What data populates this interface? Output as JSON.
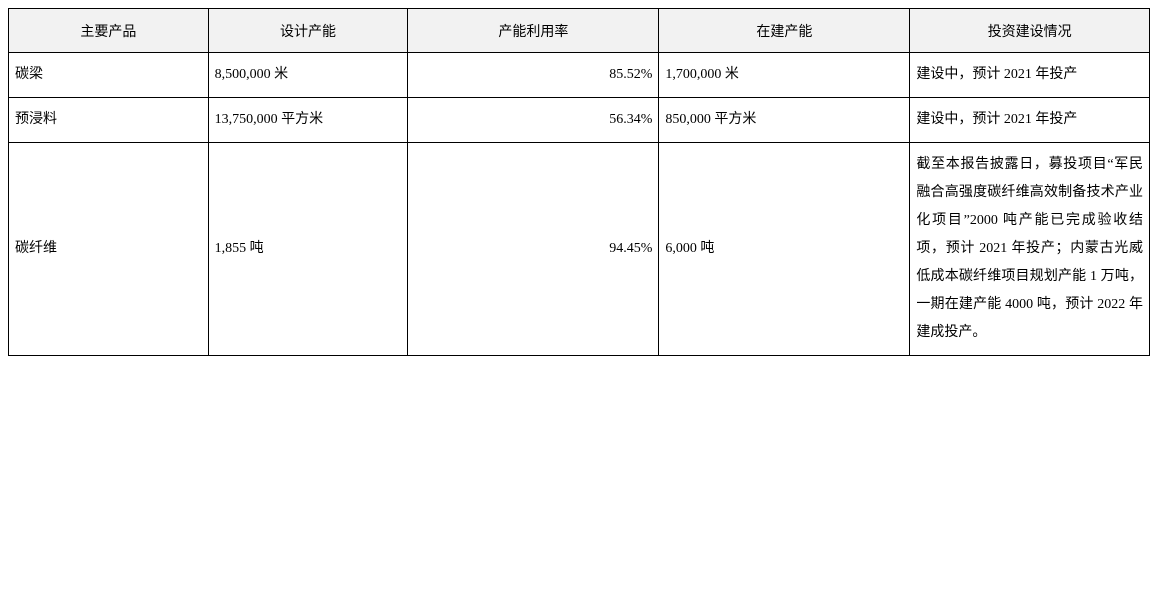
{
  "table": {
    "headers": {
      "product": "主要产品",
      "design_capacity": "设计产能",
      "utilization_rate": "产能利用率",
      "under_construction": "在建产能",
      "investment_status": "投资建设情况"
    },
    "rows": [
      {
        "product": "碳梁",
        "design_capacity": "8,500,000 米",
        "utilization_rate": "85.52%",
        "under_construction": "1,700,000 米",
        "investment_status": "建设中，预计 2021 年投产"
      },
      {
        "product": "预浸料",
        "design_capacity": "13,750,000 平方米",
        "utilization_rate": "56.34%",
        "under_construction": "850,000 平方米",
        "investment_status": "建设中，预计 2021 年投产"
      },
      {
        "product": "碳纤维",
        "design_capacity": "1,855 吨",
        "utilization_rate": "94.45%",
        "under_construction": "6,000 吨",
        "investment_status": "截至本报告披露日，募投项目“军民融合高强度碳纤维高效制备技术产业化项目”2000 吨产能已完成验收结项，预计 2021 年投产；内蒙古光威低成本碳纤维项目规划产能 1 万吨，一期在建产能 4000 吨，预计 2022 年建成投产。"
      }
    ],
    "styling": {
      "header_bg": "#f2f2f2",
      "border_color": "#000000",
      "text_color": "#000000",
      "font_size": 14,
      "line_height": 2.0,
      "column_widths": [
        "17.5%",
        "17.5%",
        "22%",
        "22%",
        "21%"
      ],
      "column_alignments": [
        "left",
        "left",
        "right",
        "left",
        "justify"
      ]
    }
  }
}
